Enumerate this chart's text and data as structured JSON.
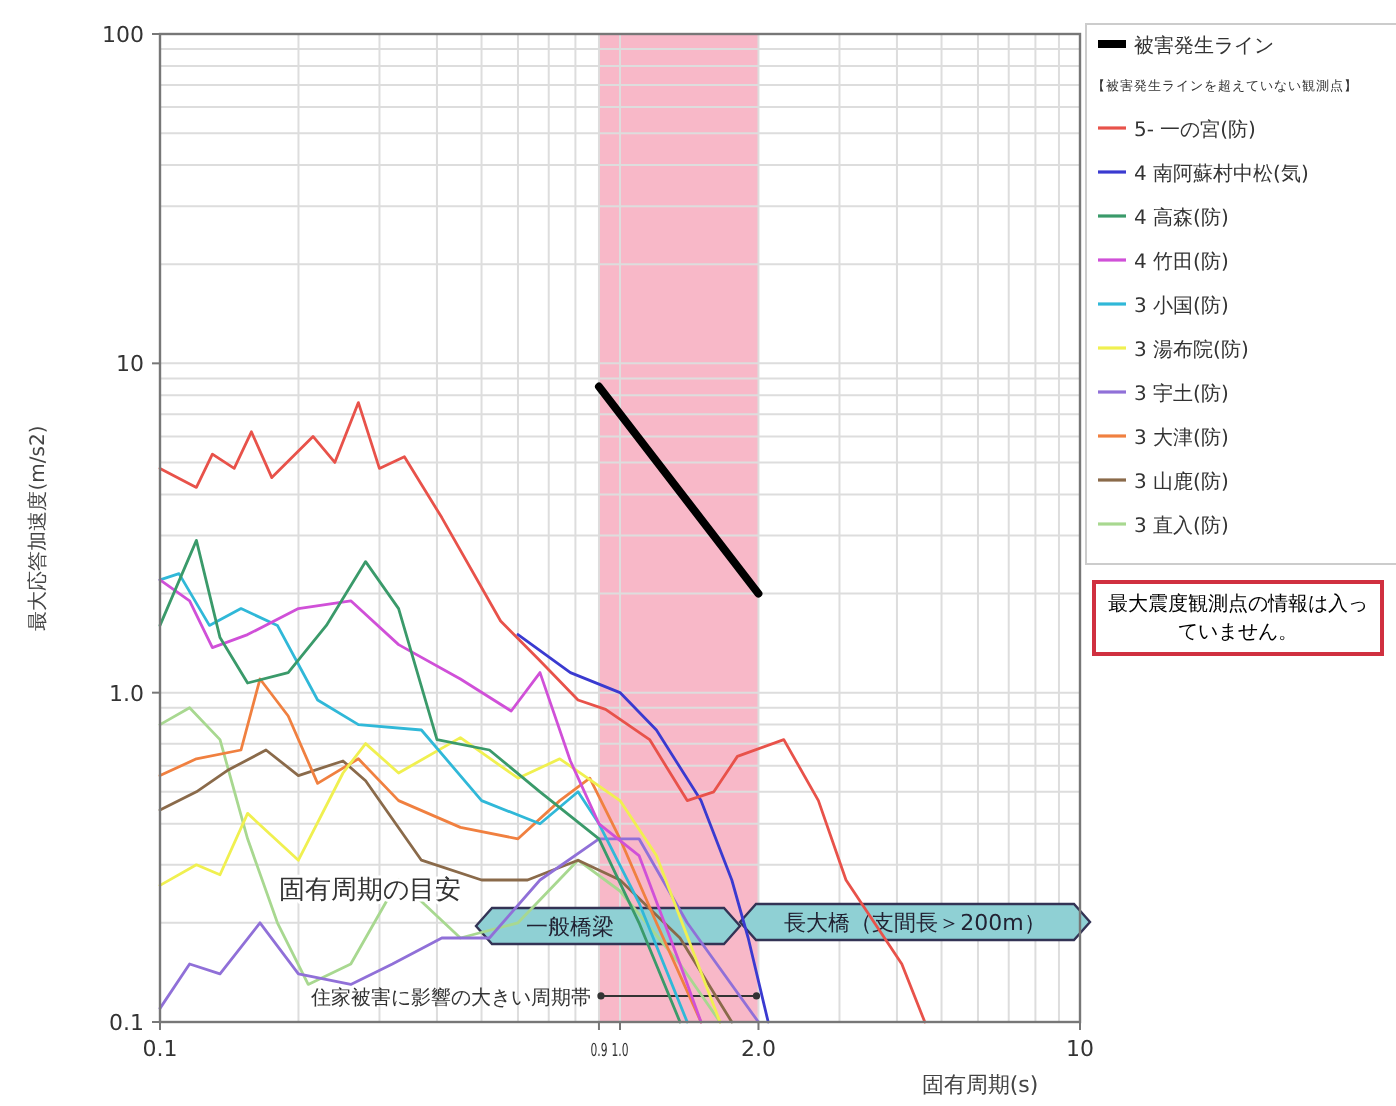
{
  "chart_data": {
    "type": "line",
    "xlabel": "固有周期(s)",
    "ylabel": "最大応答加速度(m/s2)",
    "log": "xy",
    "xlim": [
      0.1,
      10
    ],
    "ylim": [
      0.1,
      100
    ],
    "xticks": [
      0.1,
      0.9,
      {
        "value": 1,
        "label": "1.0"
      },
      {
        "value": 2,
        "label": "2.0"
      },
      10
    ],
    "yticks": [
      0.1,
      {
        "value": 1,
        "label": "1.0"
      },
      10,
      100
    ],
    "grid": true,
    "legend": "right",
    "legend_title": "【被害発生ラインを超えていない観測点】",
    "bands": [
      {
        "axis": "x",
        "from": 0.9,
        "to": 2.0,
        "color": "#f8b8c8"
      }
    ],
    "annotations": [
      "固有周期の目安",
      "一般橋梁",
      "長大橋（支間長＞200m）",
      {
        "text": "住家被害に影響の大きい周期帯",
        "x": 0.9,
        "y": 0.12
      },
      "最大震度観測点の情報は入っていません。"
    ],
    "series": [
      {
        "name": "被害発生ライン",
        "color": "#000000",
        "x": [
          0.9,
          2.0
        ],
        "values": [
          8.5,
          2.0
        ]
      },
      {
        "name": "5- 一の宮(防)",
        "color": "#e8524a",
        "x": [
          0.1,
          0.12,
          0.13,
          0.145,
          0.158,
          0.175,
          0.215,
          0.24,
          0.27,
          0.3,
          0.34,
          0.41,
          0.55,
          0.67,
          0.81,
          0.93,
          1.16,
          1.4,
          1.6,
          1.8,
          2.27,
          2.7,
          3.1,
          4.1,
          4.6
        ],
        "values": [
          4.8,
          4.2,
          5.3,
          4.8,
          6.2,
          4.5,
          6.0,
          5.0,
          7.6,
          4.8,
          5.2,
          3.4,
          1.65,
          1.25,
          0.95,
          0.89,
          0.72,
          0.47,
          0.5,
          0.64,
          0.72,
          0.47,
          0.27,
          0.15,
          0.1
        ]
      },
      {
        "name": "4 南阿蘇村中松(気)",
        "color": "#3a3ad0",
        "x": [
          0.6,
          0.78,
          1.0,
          1.2,
          1.5,
          1.75,
          1.9,
          2.1
        ],
        "values": [
          1.5,
          1.15,
          1.0,
          0.77,
          0.47,
          0.27,
          0.18,
          0.1
        ]
      },
      {
        "name": "4 高森(防)",
        "color": "#3a9a6a",
        "x": [
          0.1,
          0.12,
          0.135,
          0.155,
          0.19,
          0.23,
          0.28,
          0.33,
          0.4,
          0.52,
          0.67,
          0.9,
          1.1,
          1.35
        ],
        "values": [
          1.6,
          2.9,
          1.47,
          1.07,
          1.15,
          1.6,
          2.5,
          1.8,
          0.72,
          0.67,
          0.5,
          0.36,
          0.2,
          0.1
        ]
      },
      {
        "name": "4 竹田(防)",
        "color": "#d050d8",
        "x": [
          0.1,
          0.116,
          0.13,
          0.155,
          0.2,
          0.26,
          0.33,
          0.45,
          0.58,
          0.67,
          0.78,
          0.9,
          1.1,
          1.35,
          1.5
        ],
        "values": [
          2.2,
          1.9,
          1.37,
          1.5,
          1.8,
          1.9,
          1.4,
          1.1,
          0.88,
          1.15,
          0.62,
          0.4,
          0.32,
          0.15,
          0.1
        ]
      },
      {
        "name": "3 小国(防)",
        "color": "#30b8d8",
        "x": [
          0.1,
          0.11,
          0.128,
          0.15,
          0.18,
          0.22,
          0.27,
          0.37,
          0.5,
          0.67,
          0.81,
          0.9,
          1.1,
          1.4
        ],
        "values": [
          2.2,
          2.3,
          1.6,
          1.8,
          1.6,
          0.95,
          0.8,
          0.77,
          0.47,
          0.4,
          0.5,
          0.4,
          0.23,
          0.1
        ]
      },
      {
        "name": "3 湯布院(防)",
        "color": "#f0f050",
        "x": [
          0.1,
          0.12,
          0.135,
          0.155,
          0.2,
          0.25,
          0.28,
          0.33,
          0.45,
          0.6,
          0.74,
          1.0,
          1.2,
          1.65
        ],
        "values": [
          0.26,
          0.3,
          0.28,
          0.43,
          0.31,
          0.57,
          0.7,
          0.57,
          0.73,
          0.55,
          0.63,
          0.47,
          0.32,
          0.1
        ]
      },
      {
        "name": "3 宇土(防)",
        "color": "#9070d8",
        "x": [
          0.1,
          0.116,
          0.135,
          0.165,
          0.2,
          0.26,
          0.32,
          0.41,
          0.52,
          0.67,
          0.9,
          1.1,
          1.4,
          2.0
        ],
        "values": [
          0.11,
          0.15,
          0.14,
          0.2,
          0.14,
          0.13,
          0.15,
          0.18,
          0.18,
          0.27,
          0.36,
          0.36,
          0.2,
          0.1
        ]
      },
      {
        "name": "3 大津(防)",
        "color": "#f08040",
        "x": [
          0.1,
          0.12,
          0.15,
          0.165,
          0.19,
          0.22,
          0.27,
          0.33,
          0.45,
          0.6,
          0.74,
          0.86,
          1.0,
          1.2,
          1.5
        ],
        "values": [
          0.56,
          0.63,
          0.67,
          1.1,
          0.85,
          0.53,
          0.63,
          0.47,
          0.39,
          0.36,
          0.47,
          0.55,
          0.36,
          0.2,
          0.1
        ]
      },
      {
        "name": "3 山鹿(防)",
        "color": "#8a6a4a",
        "x": [
          0.1,
          0.12,
          0.14,
          0.17,
          0.2,
          0.25,
          0.28,
          0.37,
          0.5,
          0.63,
          0.81,
          1.0,
          1.35,
          1.75
        ],
        "values": [
          0.44,
          0.5,
          0.58,
          0.67,
          0.56,
          0.62,
          0.54,
          0.31,
          0.27,
          0.27,
          0.31,
          0.27,
          0.18,
          0.1
        ]
      },
      {
        "name": "3 直入(防)",
        "color": "#a8d890",
        "x": [
          0.1,
          0.116,
          0.135,
          0.155,
          0.18,
          0.21,
          0.26,
          0.33,
          0.45,
          0.6,
          0.81,
          1.0,
          1.35,
          1.65
        ],
        "values": [
          0.8,
          0.9,
          0.72,
          0.36,
          0.2,
          0.13,
          0.15,
          0.27,
          0.18,
          0.2,
          0.31,
          0.25,
          0.15,
          0.1
        ]
      }
    ]
  }
}
